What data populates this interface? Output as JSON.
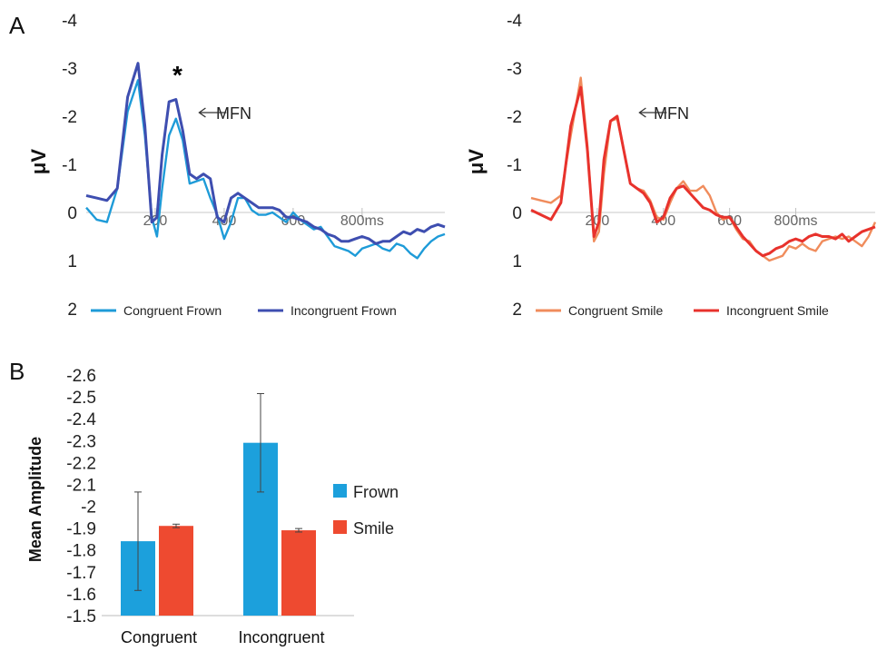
{
  "panel_labels": {
    "a": "A",
    "b": "B"
  },
  "colors": {
    "congruent_frown": "#1e9bd8",
    "incongruent_frown": "#3e4eb0",
    "congruent_smile": "#f08c5c",
    "incongruent_smile": "#e8322c",
    "frown_bar": "#1ca0dc",
    "smile_bar": "#ee4a30"
  },
  "chart_data": [
    {
      "type": "line",
      "ylabel": "μV",
      "yticks": [
        "-4",
        "-3",
        "-2",
        "-1",
        "0",
        "1",
        "2"
      ],
      "ylim": [
        2,
        -4
      ],
      "xlim": [
        0,
        1040
      ],
      "xticks": [
        "200",
        "400",
        "600",
        "800ms"
      ],
      "xtick_values": [
        200,
        400,
        600,
        800
      ],
      "annotation": "MFN",
      "significance_marker": "*",
      "series": [
        {
          "name": "Congruent Frown",
          "x": [
            0,
            30,
            60,
            90,
            120,
            150,
            170,
            190,
            205,
            220,
            240,
            260,
            280,
            300,
            320,
            340,
            360,
            380,
            400,
            420,
            440,
            460,
            480,
            500,
            520,
            540,
            560,
            580,
            600,
            620,
            640,
            660,
            680,
            700,
            720,
            740,
            760,
            780,
            800,
            820,
            840,
            860,
            880,
            900,
            920,
            940,
            960,
            980,
            1000,
            1020,
            1040
          ],
          "y": [
            -0.1,
            0.15,
            0.2,
            -0.5,
            -2.1,
            -2.75,
            -1.6,
            0.1,
            0.5,
            -0.5,
            -1.6,
            -1.95,
            -1.5,
            -0.6,
            -0.65,
            -0.7,
            -0.3,
            0.05,
            0.55,
            0.2,
            -0.3,
            -0.3,
            -0.05,
            0.05,
            0.05,
            0.0,
            0.1,
            0.2,
            0.0,
            0.15,
            0.25,
            0.35,
            0.3,
            0.5,
            0.7,
            0.75,
            0.8,
            0.9,
            0.75,
            0.7,
            0.65,
            0.75,
            0.8,
            0.65,
            0.7,
            0.85,
            0.95,
            0.75,
            0.6,
            0.5,
            0.45
          ]
        },
        {
          "name": "Incongruent Frown",
          "x": [
            0,
            30,
            60,
            90,
            120,
            150,
            170,
            190,
            205,
            220,
            240,
            260,
            280,
            300,
            320,
            340,
            360,
            380,
            400,
            420,
            440,
            460,
            480,
            500,
            520,
            540,
            560,
            580,
            600,
            620,
            640,
            660,
            680,
            700,
            720,
            740,
            760,
            780,
            800,
            820,
            840,
            860,
            880,
            900,
            920,
            940,
            960,
            980,
            1000,
            1020,
            1040
          ],
          "y": [
            -0.35,
            -0.3,
            -0.25,
            -0.5,
            -2.4,
            -3.1,
            -1.8,
            0.2,
            0.1,
            -1.2,
            -2.3,
            -2.35,
            -1.7,
            -0.8,
            -0.7,
            -0.8,
            -0.7,
            0.1,
            0.2,
            -0.3,
            -0.4,
            -0.3,
            -0.2,
            -0.1,
            -0.1,
            -0.1,
            -0.05,
            0.1,
            0.1,
            0.15,
            0.2,
            0.3,
            0.35,
            0.45,
            0.5,
            0.6,
            0.6,
            0.55,
            0.5,
            0.55,
            0.65,
            0.6,
            0.6,
            0.5,
            0.4,
            0.45,
            0.35,
            0.4,
            0.3,
            0.25,
            0.3
          ]
        }
      ],
      "legend": "bottom"
    },
    {
      "type": "line",
      "ylabel": "μV",
      "yticks": [
        "-4",
        "-3",
        "-2",
        "-1",
        "0",
        "1",
        "2"
      ],
      "ylim": [
        2,
        -4
      ],
      "xlim": [
        0,
        1040
      ],
      "xticks": [
        "200",
        "400",
        "600",
        "800ms"
      ],
      "xtick_values": [
        200,
        400,
        600,
        800
      ],
      "annotation": "MFN",
      "series": [
        {
          "name": "Congruent Smile",
          "x": [
            0,
            30,
            60,
            90,
            120,
            150,
            170,
            190,
            205,
            220,
            240,
            260,
            280,
            300,
            320,
            340,
            360,
            380,
            400,
            420,
            440,
            460,
            480,
            500,
            520,
            540,
            560,
            580,
            600,
            620,
            640,
            660,
            680,
            700,
            720,
            740,
            760,
            780,
            800,
            820,
            840,
            860,
            880,
            900,
            920,
            940,
            960,
            980,
            1000,
            1020,
            1040
          ],
          "y": [
            -0.3,
            -0.25,
            -0.2,
            -0.35,
            -1.6,
            -2.8,
            -1.4,
            0.6,
            0.4,
            -0.8,
            -1.9,
            -1.95,
            -1.3,
            -0.6,
            -0.5,
            -0.45,
            -0.25,
            0.1,
            0.15,
            -0.2,
            -0.5,
            -0.65,
            -0.45,
            -0.45,
            -0.55,
            -0.35,
            0.0,
            0.15,
            0.1,
            0.35,
            0.55,
            0.6,
            0.8,
            0.9,
            1.0,
            0.95,
            0.9,
            0.7,
            0.75,
            0.65,
            0.75,
            0.8,
            0.6,
            0.55,
            0.5,
            0.55,
            0.5,
            0.6,
            0.7,
            0.5,
            0.2
          ]
        },
        {
          "name": "Incongruent Smile",
          "x": [
            0,
            30,
            60,
            90,
            120,
            150,
            170,
            190,
            205,
            220,
            240,
            260,
            280,
            300,
            320,
            340,
            360,
            380,
            400,
            420,
            440,
            460,
            480,
            500,
            520,
            540,
            560,
            580,
            600,
            620,
            640,
            660,
            680,
            700,
            720,
            740,
            760,
            780,
            800,
            820,
            840,
            860,
            880,
            900,
            920,
            940,
            960,
            980,
            1000,
            1020,
            1040
          ],
          "y": [
            -0.05,
            0.05,
            0.15,
            -0.2,
            -1.8,
            -2.6,
            -1.3,
            0.5,
            0.2,
            -1.1,
            -1.9,
            -2.0,
            -1.3,
            -0.6,
            -0.5,
            -0.4,
            -0.2,
            0.2,
            0.1,
            -0.3,
            -0.5,
            -0.55,
            -0.4,
            -0.25,
            -0.1,
            -0.05,
            0.05,
            0.1,
            0.1,
            0.3,
            0.5,
            0.65,
            0.8,
            0.9,
            0.85,
            0.75,
            0.7,
            0.6,
            0.55,
            0.6,
            0.5,
            0.45,
            0.5,
            0.5,
            0.55,
            0.45,
            0.6,
            0.5,
            0.4,
            0.35,
            0.3
          ]
        }
      ],
      "legend": "bottom"
    },
    {
      "type": "bar",
      "ylabel": "Mean Amplitude",
      "categories": [
        "Congruent",
        "Incongruent"
      ],
      "yticks": [
        "-2.6",
        "-2.5",
        "-2.4",
        "-2.3",
        "-2.2",
        "-2.1",
        "-2",
        "-1.9",
        "-1.8",
        "-1.7",
        "-1.6",
        "-1.5"
      ],
      "ylim": [
        -1.5,
        -2.6
      ],
      "series": [
        {
          "name": "Frown",
          "values": [
            -1.84,
            -2.29
          ],
          "errors": [
            0.225,
            0.225
          ]
        },
        {
          "name": "Smile",
          "values": [
            -1.91,
            -1.89
          ],
          "errors": [
            0.008,
            0.008
          ]
        }
      ],
      "legend": "right"
    }
  ]
}
